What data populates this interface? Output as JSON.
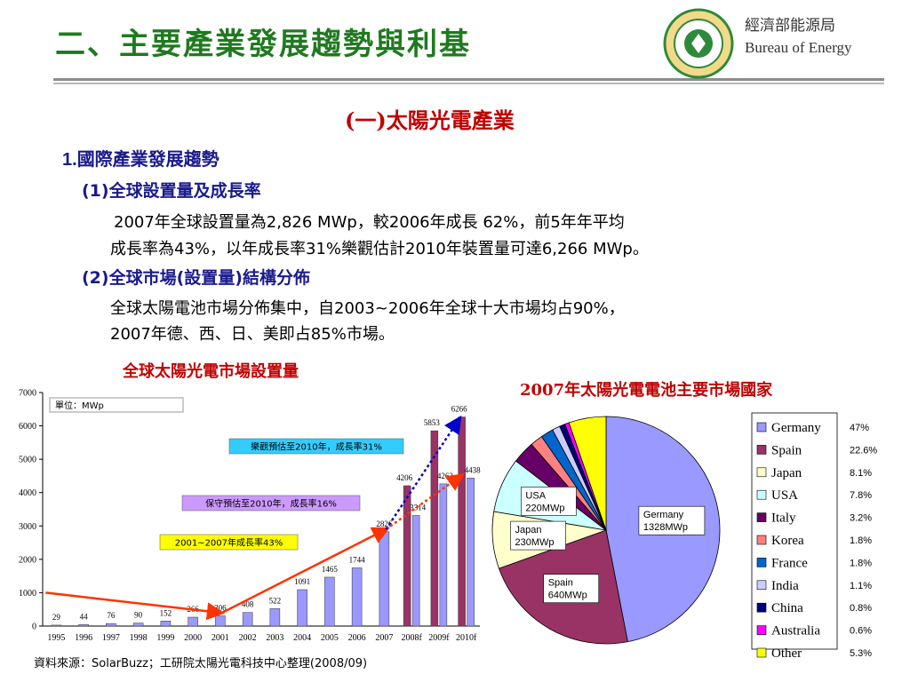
{
  "header": {
    "title": "二、主要產業發展趨勢與利基",
    "logo_cn": "經濟部能源局",
    "logo_en": "Bureau of Energy",
    "logo_ring_text": "BUREAU OF ENERGY",
    "logo_top_text": "經濟部能源局"
  },
  "section": {
    "title": "(一)太陽光電產業"
  },
  "heading1": {
    "num": "1.",
    "text": "國際產業發展趨勢"
  },
  "sub1": {
    "num": "(1)",
    "text": "全球設置量及成長率"
  },
  "para1": {
    "line1": "2007年全球設置量為2,826 MWp，較2006年成長 62%，前5年年平均",
    "line2": "成長率為43%，以年成長率31%樂觀估計2010年裝置量可達6,266 MWp。"
  },
  "sub2": {
    "num": "(2)",
    "text": "全球市場(設置量)結構分佈"
  },
  "para2": {
    "line1": "全球太陽電池市場分佈集中，自2003~2006年全球十大市場均占90%，",
    "line2": "2007年德、西、日、美即占85%市場。"
  },
  "bar_label": "全球太陽光電市場設置量",
  "pie_label": "2007年太陽光電電池主要市場國家",
  "source": "資料來源：SolarBuzz；工研院太陽光電科技中心整理(2008/09)",
  "chart_data": [
    {
      "type": "bar",
      "title": "全球太陽光電市場設置量",
      "unit_note": "單位：MWp",
      "categories": [
        "1995",
        "1996",
        "1997",
        "1998",
        "1999",
        "2000",
        "2001",
        "2002",
        "2003",
        "2004",
        "2005",
        "2006",
        "2007",
        "2008f",
        "2009f",
        "2010f"
      ],
      "series": [
        {
          "name": "",
          "color": "#9999ff",
          "values": [
            29,
            44,
            76,
            90,
            152,
            266,
            306,
            408,
            522,
            1091,
            1465,
            1744,
            2826,
            3314,
            4262,
            4438
          ]
        },
        {
          "name": "",
          "color": "#993366",
          "values": [
            null,
            null,
            null,
            null,
            null,
            null,
            null,
            null,
            null,
            null,
            null,
            null,
            null,
            4206,
            5853,
            6266
          ]
        }
      ],
      "labels": [
        "29",
        "44",
        "76",
        "90",
        "152",
        "266",
        "306",
        "408",
        "522",
        "1091",
        "1465",
        "1744",
        "2826",
        "3314",
        "4262",
        "4438",
        "4206",
        "5853",
        "6266"
      ],
      "yticks": [
        "0",
        "1000",
        "2000",
        "3000",
        "4000",
        "5000",
        "6000",
        "7000"
      ],
      "ylim": [
        0,
        7000
      ],
      "grid": false,
      "annotations": [
        {
          "text": "樂觀預估至2010年，成長率31%",
          "bg": "#33ccff"
        },
        {
          "text": "保守預估至2010年，成長率16%",
          "bg": "#cc99ff"
        },
        {
          "text": "2001~2007年成長率43%",
          "bg": "#ffff00"
        }
      ]
    },
    {
      "type": "pie",
      "title": "2007年太陽光電電池主要市場國家",
      "slices": [
        {
          "name": "Germany",
          "value": 47,
          "pct_label": "47%",
          "color": "#9999ff"
        },
        {
          "name": "Spain",
          "value": 22.6,
          "pct_label": "22.6%",
          "color": "#993366"
        },
        {
          "name": "Japan",
          "value": 8.1,
          "pct_label": "8.1%",
          "color": "#ffffcc"
        },
        {
          "name": "USA",
          "value": 7.8,
          "pct_label": "7.8%",
          "color": "#ccffff"
        },
        {
          "name": "Italy",
          "value": 3.2,
          "pct_label": "3.2%",
          "color": "#660066"
        },
        {
          "name": "Korea",
          "value": 1.8,
          "pct_label": "1.8%",
          "color": "#ff8080"
        },
        {
          "name": "France",
          "value": 1.8,
          "pct_label": "1.8%",
          "color": "#0066cc"
        },
        {
          "name": "India",
          "value": 1.1,
          "pct_label": "1.1%",
          "color": "#ccccff"
        },
        {
          "name": "China",
          "value": 0.8,
          "pct_label": "0.8%",
          "color": "#000080"
        },
        {
          "name": "Australia",
          "value": 0.6,
          "pct_label": "0.6%",
          "color": "#ff00ff"
        },
        {
          "name": "Other",
          "value": 5.3,
          "pct_label": "5.3%",
          "color": "#ffff00"
        }
      ],
      "callouts": [
        {
          "line1": "Germany",
          "line2": "1328MWp"
        },
        {
          "line1": "Spain",
          "line2": "640MWp"
        },
        {
          "line1": "Japan",
          "line2": "230MWp"
        },
        {
          "line1": "USA",
          "line2": "220MWp"
        }
      ],
      "legend_position": "right"
    }
  ]
}
